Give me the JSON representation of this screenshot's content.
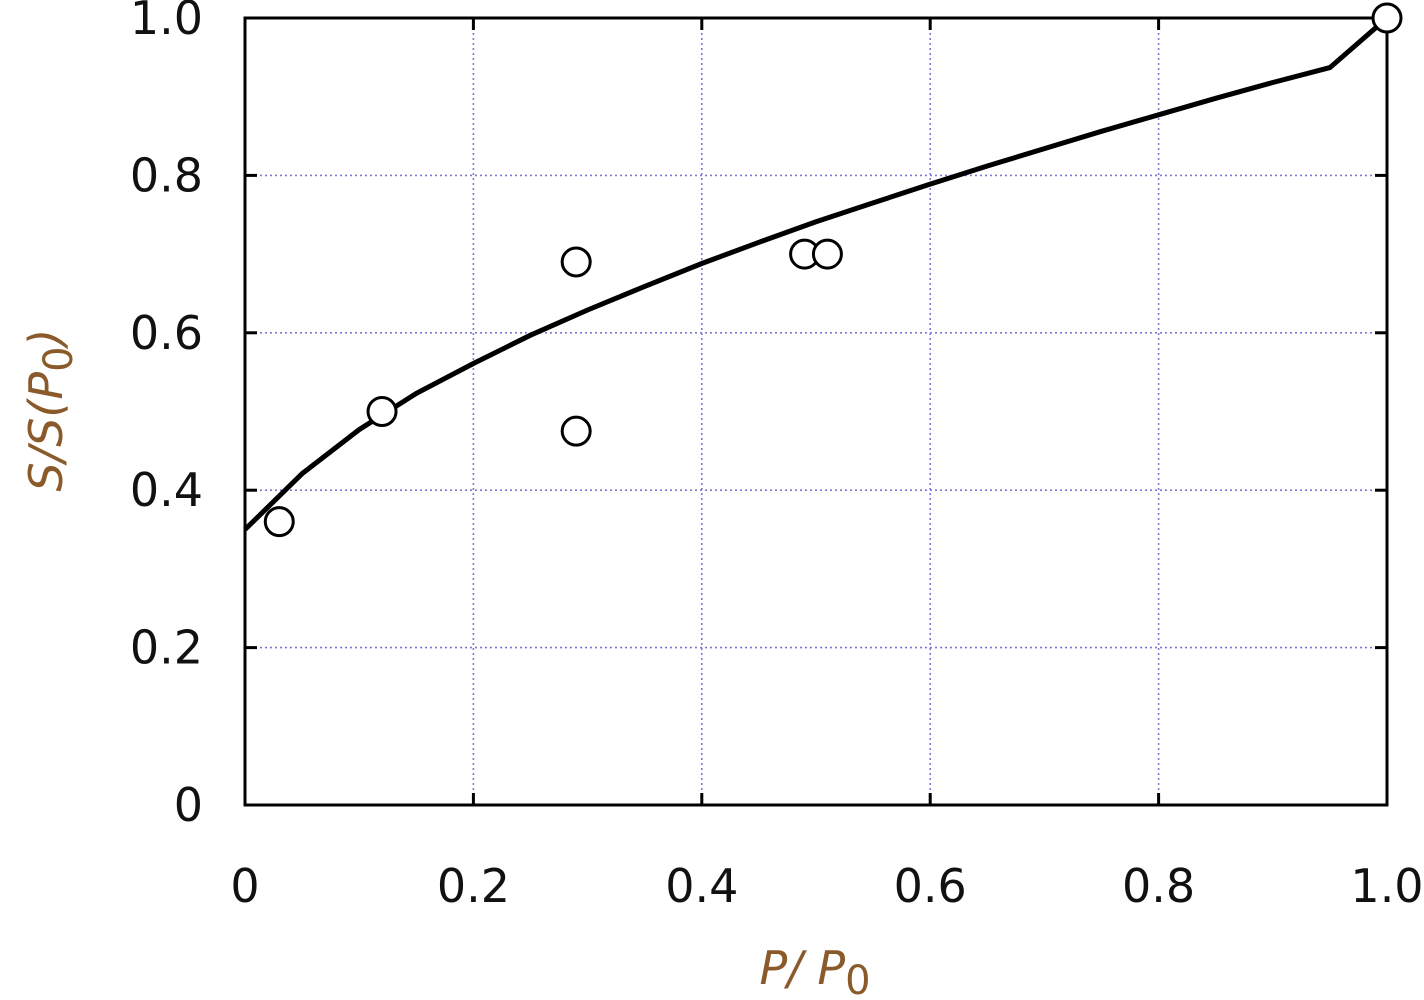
{
  "chart_data": {
    "type": "scatter",
    "xlabel": {
      "main": "P/ P",
      "sub": "0"
    },
    "ylabel": {
      "main": "S/S(P",
      "sub": "0",
      "close": ")"
    },
    "xlim": [
      0,
      1.0
    ],
    "ylim": [
      0,
      1.0
    ],
    "grid": true,
    "x_ticks": [
      "0",
      "0.2",
      "0.4",
      "0.6",
      "0.8",
      "1.0"
    ],
    "y_ticks": [
      "0",
      "0.2",
      "0.4",
      "0.6",
      "0.8",
      "1.0"
    ],
    "series": [
      {
        "marker": "open-circle",
        "x": [
          0.03,
          0.12,
          0.29,
          0.29,
          0.49,
          0.51,
          1.0
        ],
        "y": [
          0.36,
          0.5,
          0.69,
          0.475,
          0.7,
          0.7,
          1.0
        ]
      }
    ],
    "fit_curve": {
      "color": "#000000",
      "x": [
        0.0,
        0.05,
        0.1,
        0.15,
        0.2,
        0.25,
        0.3,
        0.35,
        0.4,
        0.45,
        0.5,
        0.55,
        0.6,
        0.65,
        0.7,
        0.75,
        0.8,
        0.85,
        0.9,
        0.95,
        1.0
      ],
      "y": [
        0.35,
        0.421,
        0.477,
        0.523,
        0.561,
        0.597,
        0.629,
        0.659,
        0.688,
        0.715,
        0.741,
        0.765,
        0.789,
        0.812,
        0.834,
        0.856,
        0.877,
        0.898,
        0.918,
        0.937,
        1.0
      ]
    }
  }
}
